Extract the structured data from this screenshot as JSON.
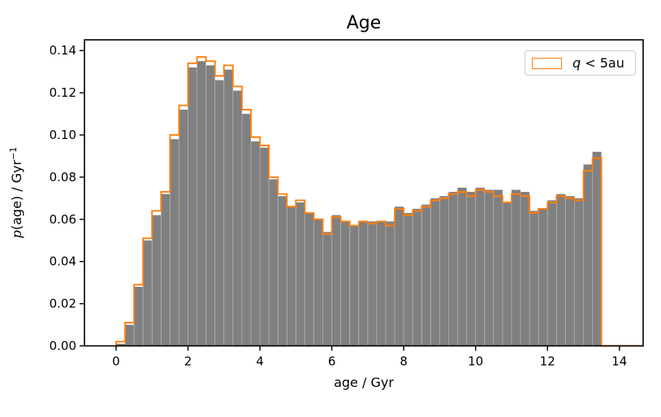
{
  "title": "Age",
  "axes": {
    "xlabel": "age / Gyr",
    "ylabel_italic": "p",
    "ylabel_mid": "(age) / Gyr",
    "ylabel_sup": "−1",
    "xticks": [
      0,
      2,
      4,
      6,
      8,
      10,
      12,
      14
    ],
    "yticks": [
      "0.00",
      "0.02",
      "0.04",
      "0.06",
      "0.08",
      "0.10",
      "0.12",
      "0.14"
    ]
  },
  "legend": {
    "label_italic": "q",
    "label_rest": " < 5au",
    "swatch_color": "#ff7f0e"
  },
  "colors": {
    "hist_fill": "#808080",
    "step_line": "#ff7f0e",
    "spine": "#000000",
    "seam": "rgba(255,255,255,0.28)"
  },
  "chart_data": {
    "type": "bar",
    "subtype": "histogram",
    "title": "Age",
    "xlabel": "age / Gyr",
    "ylabel": "p(age) / Gyr⁻¹",
    "legend_position": "upper right",
    "grid": false,
    "bin_start": 0,
    "bin_width": 0.25,
    "n_bins": 54,
    "xlim": [
      -0.88,
      14.66
    ],
    "ylim": [
      0,
      0.1451
    ],
    "series": [
      {
        "name": "all (filled gray histogram)",
        "style": "filled",
        "color": "#808080",
        "values": [
          0.001,
          0.01,
          0.028,
          0.05,
          0.062,
          0.072,
          0.098,
          0.112,
          0.132,
          0.135,
          0.133,
          0.126,
          0.131,
          0.121,
          0.11,
          0.097,
          0.094,
          0.079,
          0.071,
          0.066,
          0.068,
          0.063,
          0.06,
          0.054,
          0.062,
          0.059,
          0.057,
          0.059,
          0.059,
          0.059,
          0.059,
          0.066,
          0.063,
          0.065,
          0.067,
          0.07,
          0.071,
          0.073,
          0.075,
          0.073,
          0.075,
          0.074,
          0.074,
          0.068,
          0.074,
          0.073,
          0.064,
          0.065,
          0.069,
          0.072,
          0.071,
          0.07,
          0.086,
          0.092
        ]
      },
      {
        "name": "q < 5au (orange step outline)",
        "style": "step",
        "color": "#ff7f0e",
        "values": [
          0.002,
          0.011,
          0.029,
          0.051,
          0.064,
          0.073,
          0.1,
          0.114,
          0.134,
          0.137,
          0.135,
          0.128,
          0.133,
          0.123,
          0.112,
          0.099,
          0.095,
          0.08,
          0.072,
          0.066,
          0.069,
          0.063,
          0.06,
          0.053,
          0.061,
          0.059,
          0.057,
          0.059,
          0.058,
          0.059,
          0.057,
          0.065,
          0.062,
          0.064,
          0.066,
          0.069,
          0.07,
          0.072,
          0.073,
          0.071,
          0.074,
          0.073,
          0.071,
          0.068,
          0.072,
          0.071,
          0.063,
          0.065,
          0.068,
          0.071,
          0.07,
          0.069,
          0.083,
          0.089
        ]
      }
    ]
  }
}
